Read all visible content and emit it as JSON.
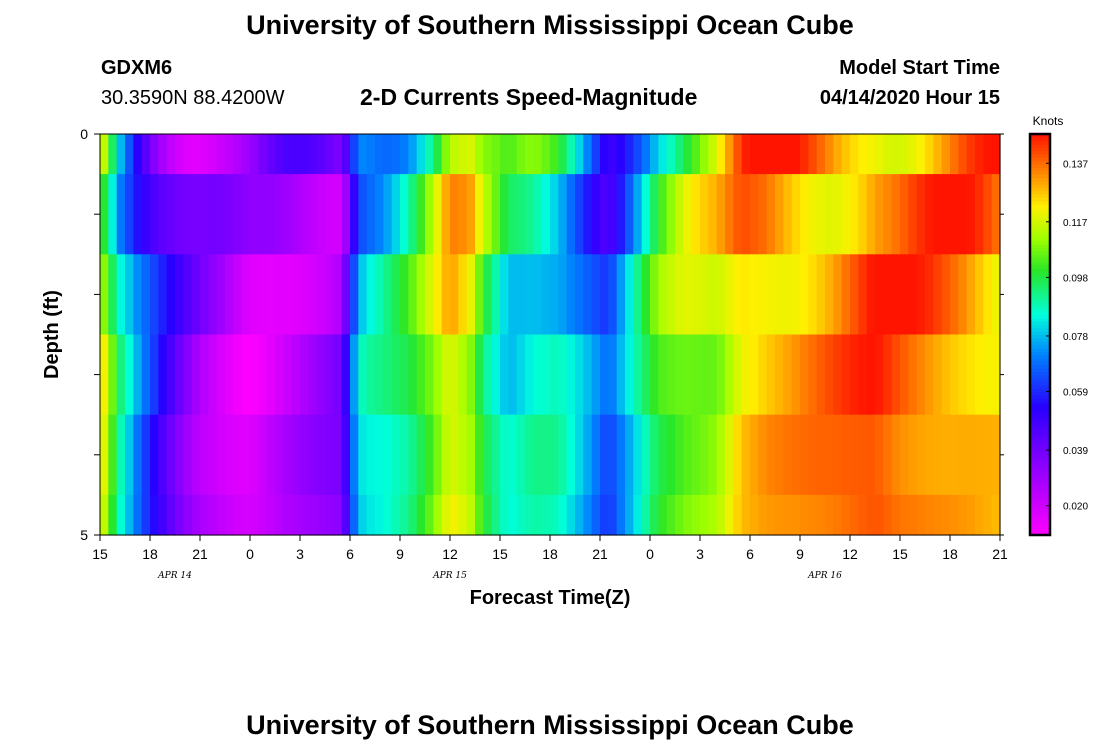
{
  "header": {
    "title": "University of Southern Mississippi Ocean Cube",
    "footer_title": "University of Southern Mississippi Ocean Cube",
    "station_id": "GDXM6",
    "station_coords": "30.3590N 88.4200W",
    "chart_subtitle": "2-D Currents Speed-Magnitude",
    "model_start_label": "Model Start Time",
    "model_start_value": "04/14/2020 Hour 15"
  },
  "chart_data": {
    "type": "heatmap",
    "title": "2-D Currents Speed-Magnitude",
    "xlabel": "Forecast Time(Z)",
    "ylabel": "Depth (ft)",
    "x_hours_from_start": [
      0,
      54
    ],
    "x_tick_labels": [
      "15",
      "18",
      "21",
      "0",
      "3",
      "6",
      "9",
      "12",
      "15",
      "18",
      "21",
      "0",
      "3",
      "6",
      "9",
      "12",
      "15",
      "18",
      "21"
    ],
    "date_labels": [
      {
        "label": "APR  14",
        "hour": 4.5
      },
      {
        "label": "APR  15",
        "hour": 21
      },
      {
        "label": "APR  16",
        "hour": 43.5
      }
    ],
    "y_tick_labels": [
      {
        "label": "0",
        "value": 0
      },
      {
        "label": "",
        "value": 1
      },
      {
        "label": "",
        "value": 2
      },
      {
        "label": "",
        "value": 3
      },
      {
        "label": "",
        "value": 4
      },
      {
        "label": "5",
        "value": 5
      }
    ],
    "ylim": [
      0,
      5
    ],
    "depth_rows": [
      0.25,
      1,
      2,
      3,
      4,
      4.75
    ],
    "colorbar": {
      "unit": "Knots",
      "min": 0.01,
      "max": 0.147,
      "tick_labels": [
        "0.137",
        "0.117",
        "0.098",
        "0.078",
        "0.059",
        "0.039",
        "0.020"
      ],
      "tick_values": [
        0.137,
        0.117,
        0.098,
        0.078,
        0.059,
        0.039,
        0.02
      ]
    },
    "profile_row_index": 5,
    "speed_profile_knots": [
      {
        "hour": 0,
        "value": 0.12
      },
      {
        "hour": 0.5,
        "value": 0.11
      },
      {
        "hour": 1.0,
        "value": 0.09
      },
      {
        "hour": 1.5,
        "value": 0.082
      },
      {
        "hour": 2.3,
        "value": 0.068
      },
      {
        "hour": 3.0,
        "value": 0.058
      },
      {
        "hour": 4.0,
        "value": 0.045
      },
      {
        "hour": 5.0,
        "value": 0.035
      },
      {
        "hour": 6.0,
        "value": 0.028
      },
      {
        "hour": 7.0,
        "value": 0.024
      },
      {
        "hour": 8.0,
        "value": 0.02
      },
      {
        "hour": 9.0,
        "value": 0.018
      },
      {
        "hour": 10.0,
        "value": 0.022
      },
      {
        "hour": 11.0,
        "value": 0.026
      },
      {
        "hour": 12.5,
        "value": 0.03
      },
      {
        "hour": 14.5,
        "value": 0.034
      },
      {
        "hour": 15.3,
        "value": 0.07
      },
      {
        "hour": 15.8,
        "value": 0.082
      },
      {
        "hour": 17.0,
        "value": 0.085
      },
      {
        "hour": 18.5,
        "value": 0.092
      },
      {
        "hour": 20.0,
        "value": 0.108
      },
      {
        "hour": 21.0,
        "value": 0.122
      },
      {
        "hour": 22.2,
        "value": 0.116
      },
      {
        "hour": 23.0,
        "value": 0.1
      },
      {
        "hour": 24.5,
        "value": 0.085
      },
      {
        "hour": 26.0,
        "value": 0.09
      },
      {
        "hour": 27.5,
        "value": 0.088
      },
      {
        "hour": 29.0,
        "value": 0.075
      },
      {
        "hour": 30.5,
        "value": 0.06
      },
      {
        "hour": 32.0,
        "value": 0.08
      },
      {
        "hour": 33.5,
        "value": 0.1
      },
      {
        "hour": 35.0,
        "value": 0.108
      },
      {
        "hour": 37.0,
        "value": 0.113
      },
      {
        "hour": 38.5,
        "value": 0.128
      },
      {
        "hour": 40.0,
        "value": 0.132
      },
      {
        "hour": 42.0,
        "value": 0.133
      },
      {
        "hour": 44.0,
        "value": 0.135
      },
      {
        "hour": 46.5,
        "value": 0.14
      },
      {
        "hour": 48.0,
        "value": 0.136
      },
      {
        "hour": 50.0,
        "value": 0.134
      },
      {
        "hour": 52.0,
        "value": 0.132
      },
      {
        "hour": 54.0,
        "value": 0.128
      }
    ]
  }
}
